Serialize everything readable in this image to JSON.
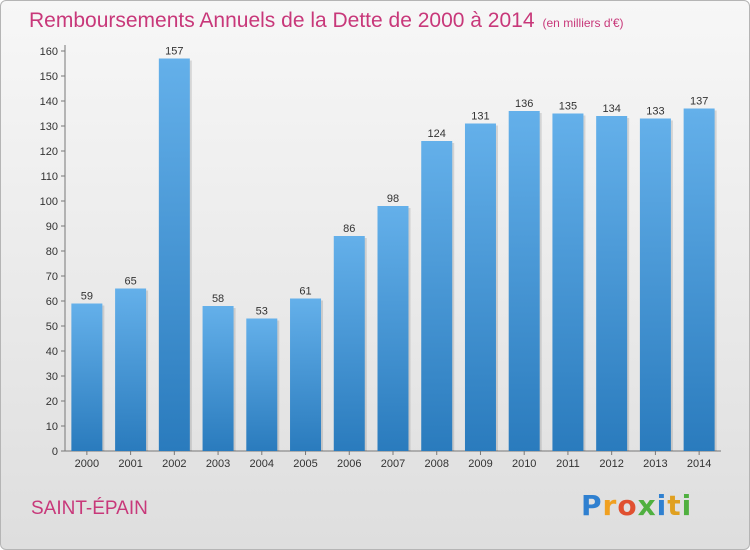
{
  "header": {
    "title": "Remboursements Annuels de la Dette de 2000 à 2014",
    "unit": "(en milliers d'€)"
  },
  "commune": "SAINT-ÉPAIN",
  "logo": {
    "letters": [
      "P",
      "r",
      "o",
      "x",
      "i",
      "t",
      "i"
    ],
    "colors": [
      "#2f80d0",
      "#f0a020",
      "#e05030",
      "#50b040",
      "#2f80d0",
      "#e0a020",
      "#50b040"
    ]
  },
  "chart_data": {
    "type": "bar",
    "title": "Remboursements Annuels de la Dette de 2000 à 2014",
    "categories": [
      "2000",
      "2001",
      "2002",
      "2003",
      "2004",
      "2005",
      "2006",
      "2007",
      "2008",
      "2009",
      "2010",
      "2011",
      "2012",
      "2013",
      "2014"
    ],
    "values": [
      59,
      65,
      157,
      58,
      53,
      61,
      86,
      98,
      124,
      131,
      136,
      135,
      134,
      133,
      137
    ],
    "ylim": [
      0,
      160
    ],
    "yticks": [
      0,
      10,
      20,
      30,
      40,
      50,
      60,
      70,
      80,
      90,
      100,
      110,
      120,
      130,
      140,
      150,
      160
    ],
    "grid": false,
    "bar_color_top": "#64b0ea",
    "bar_color_bottom": "#2a7bbd"
  }
}
